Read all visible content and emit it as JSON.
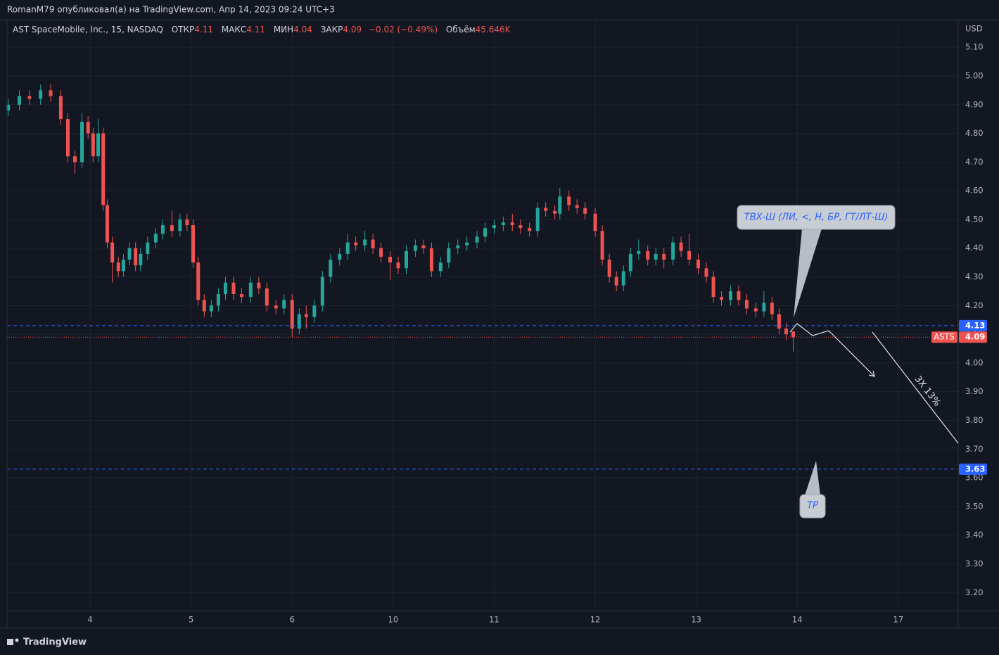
{
  "header": {
    "publisher": "RomanM79 опубликовал(а) на TradingView.com, Апр 14, 2023 09:24 UTC+3",
    "symbol": "AST SpaceMobile, Inc., 15, NASDAQ",
    "open_label": "ОТКР",
    "open": "4.11",
    "high_label": "МАКС",
    "high": "4.11",
    "low_label": "МИН",
    "low": "4.04",
    "close_label": "ЗАКР",
    "close": "4.09",
    "change": "−0.02 (−0.49%)",
    "volume_label": "Объём",
    "volume": "45.646K",
    "currency": "USD",
    "footer": "TradingView"
  },
  "chart_data": {
    "type": "candlestick",
    "up_color": "#26a69a",
    "down_color": "#ef5350",
    "grid": true,
    "x": [
      0.19,
      0.3,
      0.4,
      0.51,
      0.61,
      0.71,
      0.78,
      0.85,
      0.92,
      0.98,
      1.03,
      1.08,
      1.13,
      1.17,
      1.22,
      1.28,
      1.33,
      1.39,
      1.45,
      1.5,
      1.57,
      1.65,
      1.72,
      1.81,
      1.89,
      1.96,
      2.02,
      2.07,
      2.13,
      2.2,
      2.27,
      2.34,
      2.42,
      2.5,
      2.59,
      2.67,
      2.75,
      2.84,
      2.92,
      3.0,
      3.07,
      3.14,
      3.22,
      3.3,
      3.38,
      3.47,
      3.55,
      3.63,
      3.72,
      3.8,
      3.88,
      3.97,
      4.05,
      4.13,
      4.22,
      4.3,
      4.38,
      4.47,
      4.55,
      4.64,
      4.73,
      4.83,
      4.91,
      5.0,
      5.09,
      5.18,
      5.26,
      5.35,
      5.43,
      5.51,
      5.6,
      5.65,
      5.74,
      5.82,
      5.9,
      6.0,
      6.07,
      6.14,
      6.21,
      6.28,
      6.35,
      6.43,
      6.52,
      6.6,
      6.68,
      6.77,
      6.85,
      6.93,
      7.02,
      7.1,
      7.17,
      7.25,
      7.34,
      7.42,
      7.5,
      7.59,
      7.67,
      7.75,
      7.82,
      7.89,
      7.96
    ],
    "open": [
      4.88,
      4.9,
      4.93,
      4.92,
      4.95,
      4.93,
      4.85,
      4.72,
      4.7,
      4.84,
      4.8,
      4.72,
      4.8,
      4.55,
      4.42,
      4.35,
      4.32,
      4.36,
      4.4,
      4.34,
      4.38,
      4.42,
      4.45,
      4.48,
      4.46,
      4.5,
      4.48,
      4.35,
      4.22,
      4.18,
      4.2,
      4.24,
      4.28,
      4.24,
      4.23,
      4.28,
      4.26,
      4.2,
      4.19,
      4.22,
      4.12,
      4.17,
      4.16,
      4.2,
      4.3,
      4.36,
      4.38,
      4.42,
      4.41,
      4.43,
      4.4,
      4.37,
      4.35,
      4.33,
      4.39,
      4.41,
      4.4,
      4.32,
      4.35,
      4.4,
      4.41,
      4.42,
      4.44,
      4.47,
      4.48,
      4.49,
      4.48,
      4.47,
      4.46,
      4.54,
      4.53,
      4.52,
      4.58,
      4.55,
      4.54,
      4.52,
      4.46,
      4.36,
      4.3,
      4.27,
      4.32,
      4.38,
      4.39,
      4.36,
      4.38,
      4.36,
      4.42,
      4.39,
      4.36,
      4.33,
      4.3,
      4.23,
      4.22,
      4.25,
      4.22,
      4.19,
      4.18,
      4.21,
      4.17,
      4.12,
      4.11
    ],
    "high": [
      4.92,
      4.95,
      4.95,
      4.97,
      4.97,
      4.95,
      4.87,
      4.74,
      4.87,
      4.86,
      4.82,
      4.85,
      4.82,
      4.57,
      4.44,
      4.37,
      4.38,
      4.42,
      4.42,
      4.4,
      4.44,
      4.47,
      4.5,
      4.53,
      4.52,
      4.52,
      4.5,
      4.37,
      4.24,
      4.22,
      4.26,
      4.3,
      4.3,
      4.26,
      4.3,
      4.3,
      4.28,
      4.22,
      4.24,
      4.24,
      4.19,
      4.2,
      4.22,
      4.32,
      4.38,
      4.4,
      4.45,
      4.44,
      4.46,
      4.45,
      4.42,
      4.39,
      4.37,
      4.41,
      4.43,
      4.43,
      4.42,
      4.37,
      4.42,
      4.43,
      4.44,
      4.46,
      4.49,
      4.5,
      4.51,
      4.52,
      4.5,
      4.49,
      4.56,
      4.56,
      4.55,
      4.61,
      4.6,
      4.57,
      4.56,
      4.54,
      4.48,
      4.38,
      4.32,
      4.34,
      4.4,
      4.43,
      4.41,
      4.4,
      4.4,
      4.44,
      4.44,
      4.45,
      4.38,
      4.35,
      4.32,
      4.25,
      4.27,
      4.27,
      4.24,
      4.21,
      4.25,
      4.23,
      4.19,
      4.14,
      4.11
    ],
    "low": [
      4.86,
      4.88,
      4.9,
      4.9,
      4.91,
      4.83,
      4.7,
      4.66,
      4.68,
      4.78,
      4.7,
      4.7,
      4.53,
      4.4,
      4.28,
      4.3,
      4.3,
      4.34,
      4.32,
      4.32,
      4.36,
      4.4,
      4.43,
      4.44,
      4.44,
      4.46,
      4.33,
      4.2,
      4.16,
      4.16,
      4.18,
      4.22,
      4.22,
      4.21,
      4.21,
      4.24,
      4.18,
      4.17,
      4.17,
      4.09,
      4.1,
      4.12,
      4.14,
      4.18,
      4.28,
      4.34,
      4.36,
      4.39,
      4.39,
      4.38,
      4.35,
      4.29,
      4.31,
      4.31,
      4.37,
      4.38,
      4.3,
      4.3,
      4.33,
      4.38,
      4.39,
      4.4,
      4.42,
      4.45,
      4.46,
      4.46,
      4.45,
      4.44,
      4.44,
      4.51,
      4.5,
      4.5,
      4.53,
      4.52,
      4.5,
      4.44,
      4.34,
      4.28,
      4.25,
      4.25,
      4.3,
      4.36,
      4.34,
      4.34,
      4.33,
      4.34,
      4.37,
      4.34,
      4.31,
      4.28,
      4.21,
      4.2,
      4.2,
      4.2,
      4.17,
      4.16,
      4.16,
      4.15,
      4.1,
      4.08,
      4.04
    ],
    "close": [
      4.9,
      4.93,
      4.92,
      4.95,
      4.93,
      4.85,
      4.72,
      4.7,
      4.84,
      4.8,
      4.72,
      4.8,
      4.55,
      4.42,
      4.35,
      4.32,
      4.36,
      4.4,
      4.34,
      4.38,
      4.42,
      4.45,
      4.48,
      4.46,
      4.5,
      4.48,
      4.35,
      4.22,
      4.18,
      4.2,
      4.24,
      4.28,
      4.24,
      4.23,
      4.28,
      4.26,
      4.2,
      4.19,
      4.22,
      4.12,
      4.17,
      4.16,
      4.2,
      4.3,
      4.36,
      4.38,
      4.42,
      4.41,
      4.43,
      4.4,
      4.37,
      4.35,
      4.33,
      4.39,
      4.41,
      4.4,
      4.32,
      4.35,
      4.4,
      4.41,
      4.42,
      4.44,
      4.47,
      4.48,
      4.49,
      4.48,
      4.47,
      4.46,
      4.54,
      4.53,
      4.52,
      4.58,
      4.55,
      4.54,
      4.52,
      4.46,
      4.36,
      4.3,
      4.27,
      4.32,
      4.38,
      4.39,
      4.36,
      4.38,
      4.36,
      4.42,
      4.39,
      4.36,
      4.33,
      4.3,
      4.23,
      4.22,
      4.25,
      4.22,
      4.19,
      4.18,
      4.21,
      4.17,
      4.12,
      4.1,
      4.09
    ],
    "xlim": [
      0.178,
      9.593
    ],
    "xticks": [
      {
        "value": 1,
        "label": "4"
      },
      {
        "value": 2,
        "label": "5"
      },
      {
        "value": 3,
        "label": "6"
      },
      {
        "value": 4,
        "label": "10"
      },
      {
        "value": 5,
        "label": "11"
      },
      {
        "value": 6,
        "label": "12"
      },
      {
        "value": 7,
        "label": "13"
      },
      {
        "value": 8,
        "label": "14"
      },
      {
        "value": 9,
        "label": "17"
      }
    ],
    "ylim": [
      3.137,
      5.196
    ],
    "yticks": [
      {
        "value": 3.2,
        "label": "3.20"
      },
      {
        "value": 3.3,
        "label": "3.30"
      },
      {
        "value": 3.4,
        "label": "3.40"
      },
      {
        "value": 3.5,
        "label": "3.50"
      },
      {
        "value": 3.6,
        "label": "3.60"
      },
      {
        "value": 3.7,
        "label": "3.70"
      },
      {
        "value": 3.8,
        "label": "3.80"
      },
      {
        "value": 3.9,
        "label": "3.90"
      },
      {
        "value": 4.0,
        "label": "4.00"
      },
      {
        "value": 4.1,
        "label": "4.10"
      },
      {
        "value": 4.2,
        "label": "4.20"
      },
      {
        "value": 4.3,
        "label": "4.30"
      },
      {
        "value": 4.4,
        "label": "4.40"
      },
      {
        "value": 4.5,
        "label": "4.50"
      },
      {
        "value": 4.6,
        "label": "4.60"
      },
      {
        "value": 4.7,
        "label": "4.70"
      },
      {
        "value": 4.8,
        "label": "4.80"
      },
      {
        "value": 4.9,
        "label": "4.90"
      },
      {
        "value": 5.0,
        "label": "5.00"
      },
      {
        "value": 5.1,
        "label": "5.10"
      }
    ],
    "hlines": [
      {
        "value": 4.13,
        "color": "#2962ff"
      },
      {
        "value": 3.63,
        "color": "#2962ff"
      }
    ],
    "last_price": {
      "name": "ASTS",
      "value": 4.09,
      "color": "#ef5350"
    },
    "annotations": [
      "ТВХ-Ш (ЛИ, <, Н, БР, ГТ/ЛТ-Ш)",
      "TP",
      "3X 13%"
    ]
  }
}
